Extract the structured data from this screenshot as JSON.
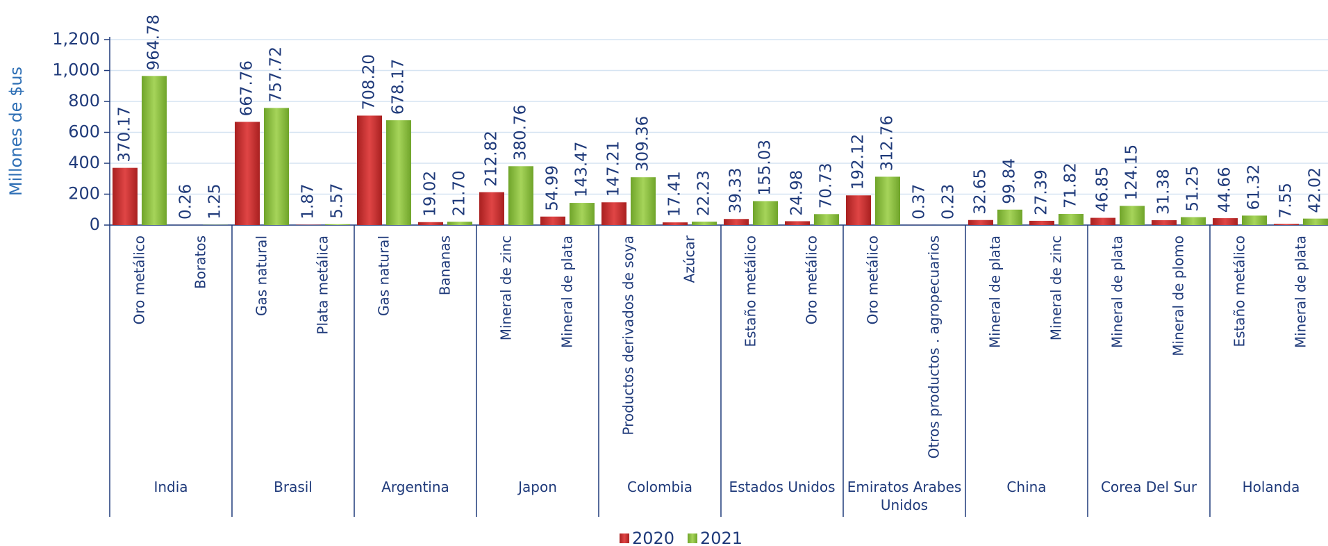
{
  "chart_data": {
    "type": "bar",
    "y_label": "Millones de $us",
    "groups": [
      "India",
      "Brasil",
      "Argentina",
      "Japon",
      "Colombia",
      "Estados Unidos",
      "Emiratos Arabes Unidos",
      "China",
      "Corea Del Sur",
      "Holanda"
    ],
    "categories": [
      "Oro metálico",
      "Boratos",
      "Gas natural",
      "Plata metálica",
      "Gas natural",
      "Bananas",
      "Mineral de zinc",
      "Mineral de plata",
      "Productos derivados de soya",
      "Azúcar",
      "Estaño metálico",
      "Oro metálico",
      "Oro metálico",
      "Otros productos . agropecuarios",
      "Mineral de plata",
      "Mineral de zinc",
      "Mineral de plata",
      "Mineral de plomo",
      "Estaño metálico",
      "Mineral de plata"
    ],
    "series": [
      {
        "name": "2020",
        "color": "#c62f2f",
        "values": [
          370.17,
          0.26,
          667.76,
          1.87,
          708.2,
          19.02,
          212.82,
          54.99,
          147.21,
          17.41,
          39.33,
          24.98,
          192.12,
          0.37,
          32.65,
          27.39,
          46.85,
          31.38,
          44.66,
          7.55
        ],
        "value_labels": [
          "370.17",
          "0.26",
          "667.76",
          "1.87",
          "708.20",
          "19.02",
          "212.82",
          "54.99",
          "147.21",
          "17.41",
          "39.33",
          "24.98",
          "192.12",
          "0.37",
          "32.65",
          "27.39",
          "46.85",
          "31.38",
          "44.66",
          "7.55"
        ]
      },
      {
        "name": "2021",
        "color": "#8cc03c",
        "values": [
          964.78,
          1.25,
          757.72,
          5.57,
          678.17,
          21.7,
          380.76,
          143.47,
          309.36,
          22.23,
          155.03,
          70.73,
          312.76,
          0.23,
          99.84,
          71.82,
          124.15,
          51.25,
          61.32,
          42.02
        ],
        "value_labels": [
          "964.78",
          "1.25",
          "757.72",
          "5.57",
          "678.17",
          "21.70",
          "380.76",
          "143.47",
          "309.36",
          "22.23",
          "155.03",
          "70.73",
          "312.76",
          "0.23",
          "99.84",
          "71.82",
          "124.15",
          "51.25",
          "61.32",
          "42.02"
        ]
      }
    ],
    "ylim": [
      0,
      1200
    ],
    "yticks": [
      0,
      200,
      400,
      600,
      800,
      {
        "value": 1000,
        "label": "1,000"
      },
      {
        "value": 1200,
        "label": "1,200"
      }
    ],
    "grid": true,
    "legend": "bottom"
  }
}
